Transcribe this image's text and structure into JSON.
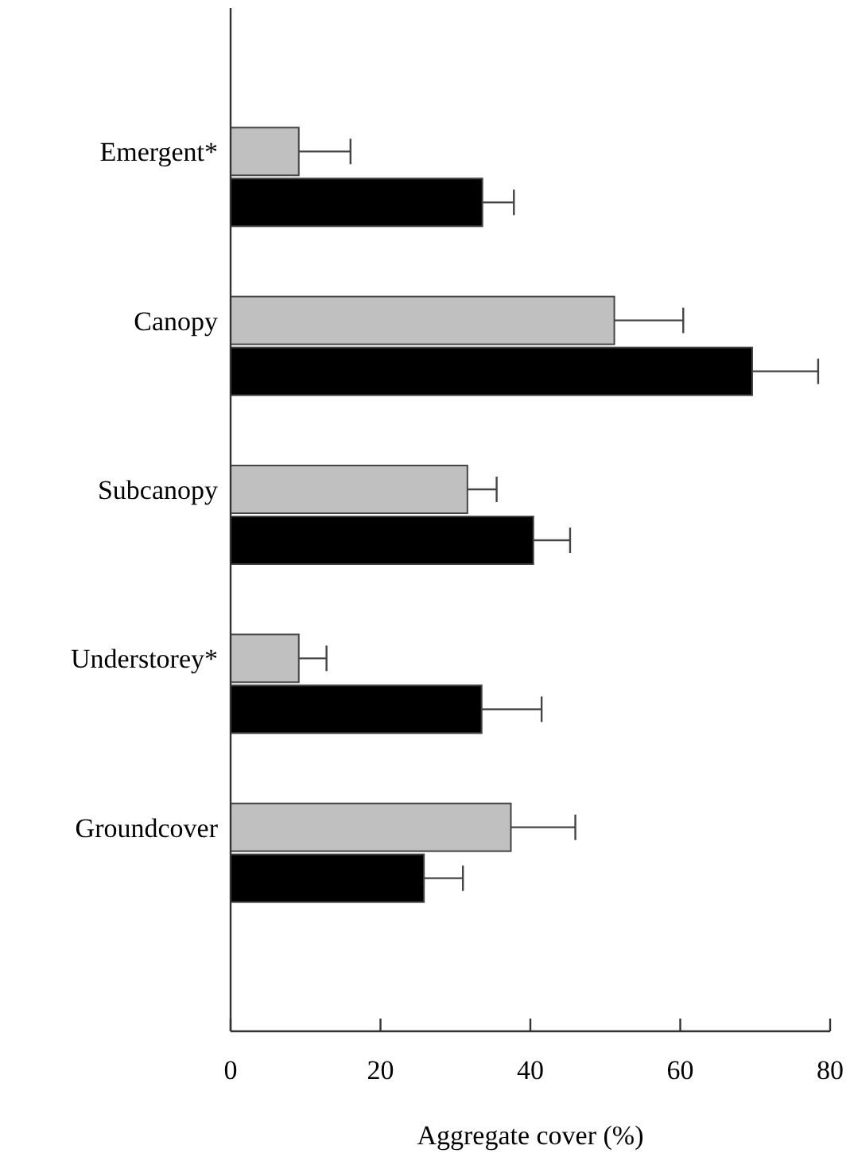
{
  "chart_data": {
    "type": "bar",
    "orientation": "horizontal",
    "xlabel": "Aggregate cover (%)",
    "categories": [
      "Emergent*",
      "Canopy",
      "Subcanopy",
      "Understorey*",
      "Groundcover"
    ],
    "series": [
      {
        "color": "#c0c0c0",
        "values": [
          9.1,
          51.2,
          31.6,
          9.1,
          37.4
        ],
        "errors": [
          [
            9.1,
            16.0
          ],
          [
            51.2,
            60.4
          ],
          [
            31.6,
            35.5
          ],
          [
            9.1,
            12.8
          ],
          [
            37.4,
            46.0
          ]
        ]
      },
      {
        "color": "#000000",
        "values": [
          33.6,
          69.6,
          40.4,
          33.5,
          25.8
        ],
        "errors": [
          [
            33.6,
            37.8
          ],
          [
            69.6,
            78.4
          ],
          [
            40.4,
            45.3
          ],
          [
            33.5,
            41.5
          ],
          [
            25.8,
            31.0
          ]
        ]
      }
    ],
    "xlim": [
      0,
      80
    ],
    "xticks": [
      0,
      20,
      40,
      60,
      80
    ]
  }
}
